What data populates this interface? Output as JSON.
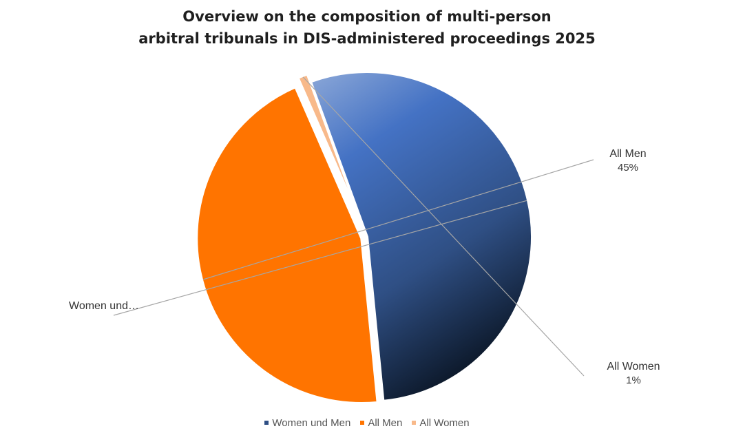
{
  "chart_data": {
    "type": "pie",
    "title_lines": [
      "Overview on the composition of multi-person",
      "arbitral tribunals in DIS-administered proceedings 2025"
    ],
    "slices": [
      {
        "name": "Women und Men",
        "label": "Women und…",
        "value": 54,
        "percent_label": "",
        "color": "#4472C4"
      },
      {
        "name": "All Men",
        "label": "All Men",
        "value": 45,
        "percent_label": "45%",
        "color": "#FF7400"
      },
      {
        "name": "All Women",
        "label": "All Women",
        "value": 1,
        "percent_label": "1%",
        "color": "#F8B98A"
      }
    ],
    "legend_position": "bottom"
  }
}
